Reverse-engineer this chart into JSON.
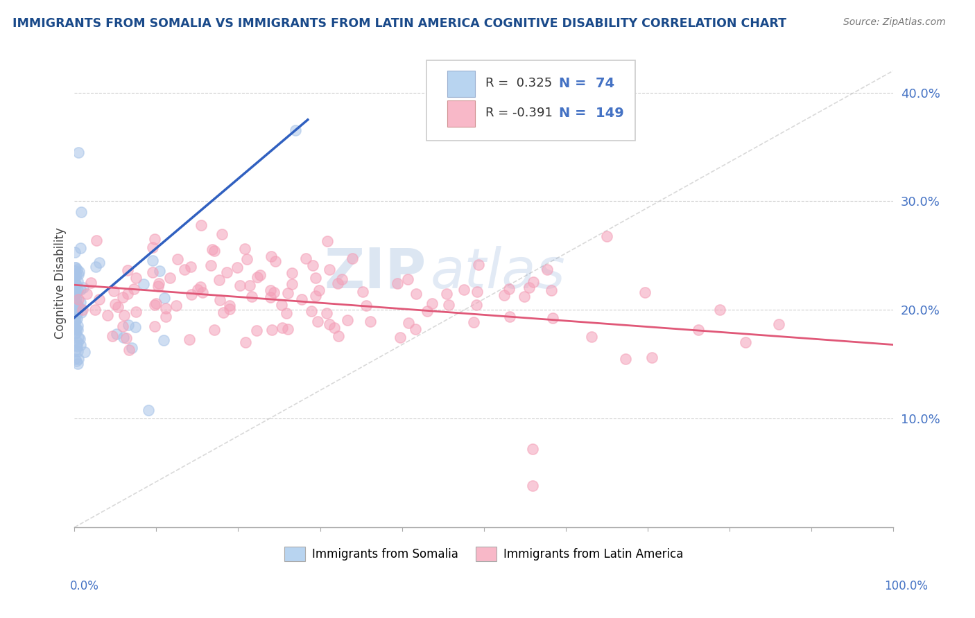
{
  "title": "IMMIGRANTS FROM SOMALIA VS IMMIGRANTS FROM LATIN AMERICA COGNITIVE DISABILITY CORRELATION CHART",
  "source": "Source: ZipAtlas.com",
  "ylabel": "Cognitive Disability",
  "r_somalia": 0.325,
  "n_somalia": 74,
  "r_latin": -0.391,
  "n_latin": 149,
  "color_somalia": "#a8c4e8",
  "color_latin": "#f4a0b8",
  "color_trendline_somalia": "#3060c0",
  "color_trendline_latin": "#e05878",
  "color_dashed": "#c0c0c0",
  "legend_box_color_somalia": "#b8d4f0",
  "legend_box_color_latin": "#f8b8c8",
  "title_color": "#1a4a8a",
  "watermark": "ZIPAtlas",
  "xlim": [
    0.0,
    1.0
  ],
  "ylim": [
    0.0,
    0.45
  ],
  "yticks": [
    0.1,
    0.2,
    0.3,
    0.4
  ],
  "ytick_labels": [
    "10.0%",
    "20.0%",
    "30.0%",
    "40.0%"
  ]
}
